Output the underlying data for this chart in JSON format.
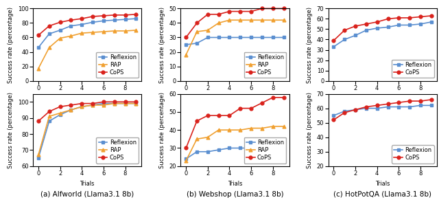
{
  "trials": [
    0,
    1,
    2,
    3,
    4,
    5,
    6,
    7,
    8,
    9
  ],
  "plots": [
    {
      "caption": "(a) Alfworld (Llama3.1 8b)",
      "ylabel": "Success rate (percentage)",
      "xlabel": "Trials",
      "ylim": [
        0,
        100
      ],
      "yticks": [
        0,
        20,
        40,
        60,
        80,
        100
      ],
      "legend_loc": "lower right",
      "series": [
        {
          "label": "Reflexion",
          "color": "#5b8fd0",
          "marker": "s",
          "data": [
            46,
            65,
            70,
            76,
            78,
            81,
            83,
            84,
            85,
            86
          ]
        },
        {
          "label": "RAP",
          "color": "#f0a030",
          "marker": "^",
          "data": [
            17,
            46,
            59,
            62,
            66,
            67,
            68,
            69,
            69,
            70
          ]
        },
        {
          "label": "CoPS",
          "color": "#d9221c",
          "marker": "o",
          "data": [
            63,
            76,
            81,
            84,
            86,
            89,
            90,
            91,
            91,
            92
          ]
        }
      ]
    },
    {
      "caption": "(b) Webshop (Llama3.1 8b)",
      "ylabel": "Success rate (percentage)",
      "xlabel": "Trials",
      "ylim": [
        0,
        50
      ],
      "yticks": [
        0,
        10,
        20,
        30,
        40,
        50
      ],
      "legend_loc": "lower right",
      "series": [
        {
          "label": "Reflexion",
          "color": "#5b8fd0",
          "marker": "s",
          "data": [
            25,
            26,
            30,
            30,
            30,
            30,
            30,
            30,
            30,
            30
          ]
        },
        {
          "label": "RAP",
          "color": "#f0a030",
          "marker": "^",
          "data": [
            18,
            34,
            35,
            40,
            42,
            42,
            42,
            42,
            42,
            42
          ]
        },
        {
          "label": "CoPS",
          "color": "#d9221c",
          "marker": "o",
          "data": [
            30,
            40,
            46,
            46,
            48,
            48,
            48,
            50,
            50,
            50
          ]
        }
      ]
    },
    {
      "caption": "(c) HotPotQA (Llama3.1 8b)",
      "ylabel": "Success rate (percentage)",
      "xlabel": "Trials",
      "ylim": [
        0,
        70
      ],
      "yticks": [
        0,
        10,
        20,
        30,
        40,
        50,
        60,
        70
      ],
      "legend_loc": "lower right",
      "series": [
        {
          "label": "Reflexion",
          "color": "#5b8fd0",
          "marker": "s",
          "data": [
            33,
            40,
            44,
            49,
            51,
            52,
            54,
            54,
            55,
            57
          ]
        },
        {
          "label": "CoPS",
          "color": "#d9221c",
          "marker": "o",
          "data": [
            39,
            49,
            53,
            55,
            57,
            60,
            61,
            61,
            62,
            63
          ]
        }
      ]
    },
    {
      "caption": "(a) Alfworld (Llama3.1 8b)",
      "ylabel": "Success rate (percentage)",
      "xlabel": "Trials",
      "ylim": [
        60,
        105
      ],
      "yticks": [
        60,
        70,
        80,
        90,
        100
      ],
      "legend_loc": "lower right",
      "series": [
        {
          "label": "Reflexion",
          "color": "#5b8fd0",
          "marker": "s",
          "data": [
            65,
            88,
            92,
            95,
            97,
            98,
            99,
            99,
            99,
            99
          ]
        },
        {
          "label": "RAP",
          "color": "#f0a030",
          "marker": "^",
          "data": [
            67,
            91,
            93,
            95,
            97,
            98,
            98,
            99,
            99,
            99
          ]
        },
        {
          "label": "CoPS",
          "color": "#d9221c",
          "marker": "o",
          "data": [
            88,
            94,
            97,
            98,
            99,
            99,
            100,
            100,
            100,
            100
          ]
        }
      ]
    },
    {
      "caption": "(b) Webshop (Llama3.1 8b)",
      "ylabel": "Success rate (percentage)",
      "xlabel": "Trials",
      "ylim": [
        20,
        60
      ],
      "yticks": [
        20,
        30,
        40,
        50,
        60
      ],
      "legend_loc": "lower right",
      "series": [
        {
          "label": "Reflexion",
          "color": "#5b8fd0",
          "marker": "s",
          "data": [
            24,
            28,
            28,
            29,
            30,
            30,
            30,
            30,
            30,
            30
          ]
        },
        {
          "label": "RAP",
          "color": "#f0a030",
          "marker": "^",
          "data": [
            23,
            35,
            36,
            40,
            40,
            40,
            41,
            41,
            42,
            42
          ]
        },
        {
          "label": "CoPS",
          "color": "#d9221c",
          "marker": "o",
          "data": [
            30,
            45,
            48,
            48,
            48,
            52,
            52,
            55,
            58,
            58
          ]
        }
      ]
    },
    {
      "caption": "(c) HotPotQA (Llama3.1 8b)",
      "ylabel": "Success rate (percentage)",
      "xlabel": "Trials",
      "ylim": [
        20,
        70
      ],
      "yticks": [
        20,
        30,
        40,
        50,
        60,
        70
      ],
      "legend_loc": "lower right",
      "series": [
        {
          "label": "Reflexion",
          "color": "#5b8fd0",
          "marker": "s",
          "data": [
            55,
            58,
            59,
            60,
            60,
            61,
            61,
            61,
            62,
            62
          ]
        },
        {
          "label": "CoPS",
          "color": "#d9221c",
          "marker": "o",
          "data": [
            52,
            57,
            59,
            61,
            62,
            63,
            64,
            65,
            65,
            66
          ]
        }
      ]
    }
  ],
  "line_width": 1.2,
  "marker_size": 3.5,
  "caption_font_size": 7.5,
  "legend_font_size": 6,
  "tick_font_size": 6,
  "label_font_size": 6
}
